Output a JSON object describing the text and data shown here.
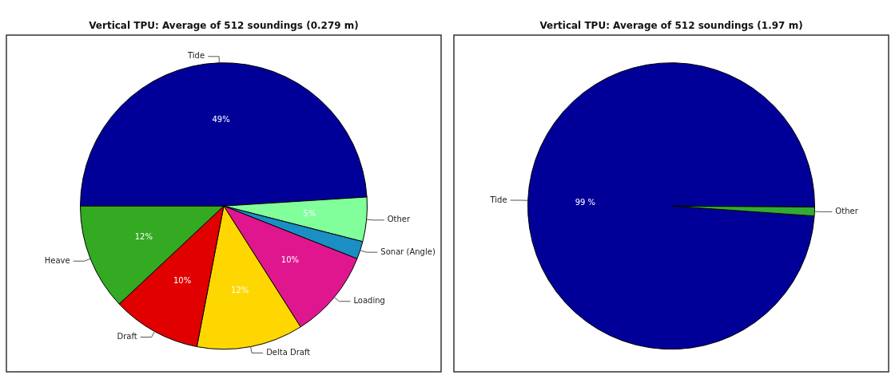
{
  "chart_data": [
    {
      "type": "pie",
      "title": "Vertical TPU: Average of 512 soundings (0.279 m)",
      "categories": [
        "Tide",
        "Other",
        "Sonar (Angle)",
        "Loading",
        "Delta Draft",
        "Draft",
        "Heave"
      ],
      "values": [
        49,
        5,
        2,
        10,
        12,
        10,
        12
      ],
      "colors": [
        "#000099",
        "#80ff9a",
        "#1a8fc4",
        "#e0168f",
        "#ffd700",
        "#e00000",
        "#33aa22"
      ],
      "value_labels": [
        "49%",
        "5%",
        null,
        "10%",
        "12%",
        "10%",
        "12%"
      ],
      "legend": false
    },
    {
      "type": "pie",
      "title": "Vertical TPU: Average of 512 soundings (1.97 m)",
      "categories": [
        "Tide",
        "Other"
      ],
      "values": [
        99,
        1
      ],
      "colors": [
        "#000099",
        "#33aa33"
      ],
      "value_labels": [
        "99 %",
        null
      ],
      "legend": false
    }
  ]
}
